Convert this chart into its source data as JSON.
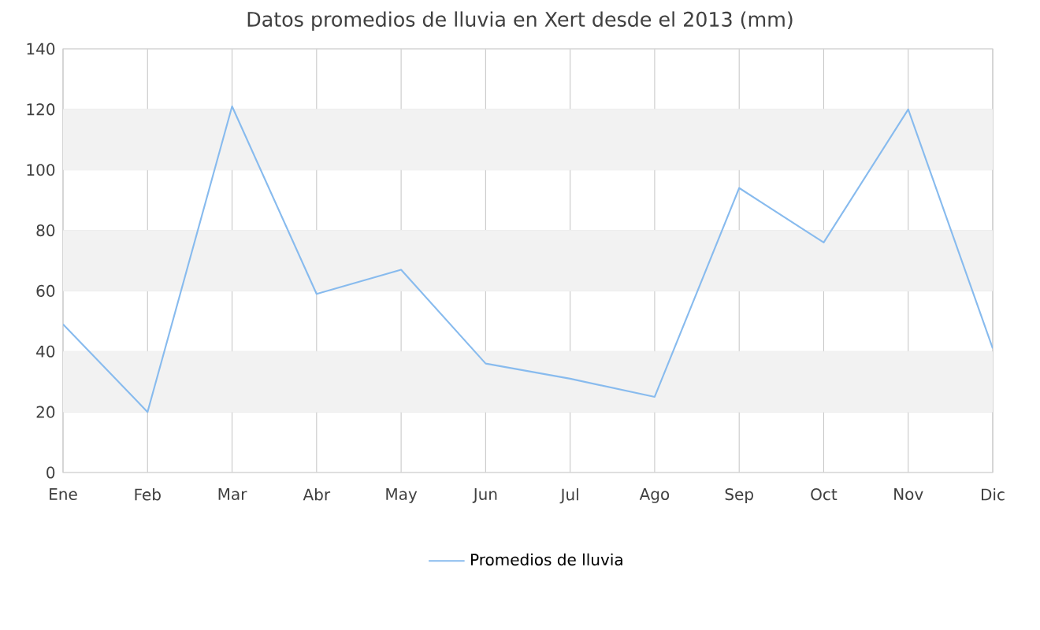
{
  "chart_data": {
    "type": "line",
    "title": "Datos promedios de lluvia en Xert desde el  2013 (mm)",
    "categories": [
      "Ene",
      "Feb",
      "Mar",
      "Abr",
      "May",
      "Jun",
      "Jul",
      "Ago",
      "Sep",
      "Oct",
      "Nov",
      "Dic"
    ],
    "series": [
      {
        "name": "Promedios de lluvia",
        "color": "#88bbee",
        "values": [
          49,
          20,
          121,
          59,
          67,
          36,
          31,
          25,
          94,
          76,
          120,
          41
        ]
      }
    ],
    "ylim": [
      0,
      140
    ],
    "yticks": [
      0,
      20,
      40,
      60,
      80,
      100,
      120,
      140
    ],
    "bands": [
      {
        "axis": "y",
        "from": 20,
        "to": 40,
        "color": "#f2f2f2"
      },
      {
        "axis": "y",
        "from": 60,
        "to": 80,
        "color": "#f2f2f2"
      },
      {
        "axis": "y",
        "from": 100,
        "to": 120,
        "color": "#f2f2f2"
      }
    ],
    "grid": true,
    "legend": "bottom",
    "marker": "none",
    "line_style": "solid"
  }
}
